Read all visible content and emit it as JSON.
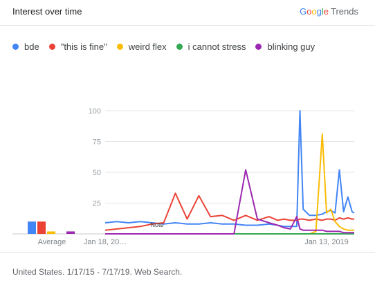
{
  "header": {
    "title": "Interest over time"
  },
  "brand": {
    "google": "Google",
    "trends": "Trends",
    "colors": [
      "#4285F4",
      "#EA4335",
      "#FBBC05",
      "#4285F4",
      "#34A853",
      "#EA4335"
    ]
  },
  "footer": {
    "text": "United States. 1/17/15 - 7/17/19. Web Search."
  },
  "chart_data": {
    "type": "line",
    "ylim": [
      0,
      100
    ],
    "y_ticks": [
      "100",
      "75",
      "50",
      "25"
    ],
    "x_ticks": [
      "Jan 18, 20…",
      "Jan 13, 2019"
    ],
    "note_label": "Note",
    "average_label": "Average",
    "grid": true,
    "legend_placement": "top",
    "x": [
      "2015-01-18",
      "2015-04-05",
      "2015-06-21",
      "2015-09-06",
      "2015-11-22",
      "2016-02-07",
      "2016-04-24",
      "2016-07-10",
      "2016-09-25",
      "2016-12-11",
      "2017-02-26",
      "2017-05-14",
      "2017-07-30",
      "2017-10-15",
      "2017-12-31",
      "2018-02-25",
      "2018-04-08",
      "2018-05-20",
      "2018-07-01",
      "2018-07-22",
      "2018-08-12",
      "2018-09-23",
      "2018-11-04",
      "2018-12-16",
      "2019-01-13",
      "2019-02-10",
      "2019-03-10",
      "2019-04-07",
      "2019-05-05",
      "2019-06-02",
      "2019-06-30",
      "2019-07-14"
    ],
    "series": [
      {
        "name": "bde",
        "color": "#4285F4",
        "average": 10,
        "values": [
          9,
          10,
          9,
          10,
          9,
          8,
          9,
          8,
          8,
          9,
          8,
          8,
          7,
          7,
          8,
          7,
          6,
          6,
          6,
          100,
          20,
          15,
          15,
          16,
          18,
          19,
          17,
          52,
          18,
          30,
          18,
          17
        ]
      },
      {
        "name": "\"this is fine\"",
        "color": "#EA4335",
        "average": 10,
        "values": [
          3,
          4,
          5,
          6,
          8,
          9,
          33,
          12,
          31,
          14,
          15,
          11,
          15,
          11,
          14,
          11,
          12,
          11,
          11,
          12,
          12,
          11,
          12,
          11,
          12,
          12,
          11,
          13,
          12,
          13,
          12,
          12
        ]
      },
      {
        "name": "weird flex",
        "color": "#FBBC05",
        "average": 2,
        "values": [
          0,
          0,
          0,
          0,
          0,
          0,
          0,
          0,
          0,
          0,
          0,
          0,
          0,
          0,
          0,
          0,
          0,
          0,
          0,
          0,
          0,
          0,
          2,
          81,
          17,
          20,
          10,
          6,
          4,
          3,
          3,
          3
        ]
      },
      {
        "name": "i cannot stress",
        "color": "#34A853",
        "average": 0,
        "values": [
          0,
          0,
          0,
          0,
          0,
          0,
          0,
          0,
          0,
          0,
          0,
          0,
          0,
          0,
          0,
          0,
          0,
          0,
          0,
          0,
          0,
          0,
          0,
          0,
          0,
          0,
          0,
          0,
          0,
          0,
          0,
          0
        ]
      },
      {
        "name": "blinking guy",
        "color": "#9C27B0",
        "average": 2,
        "values": [
          0,
          0,
          0,
          0,
          0,
          0,
          0,
          0,
          0,
          0,
          0,
          0,
          52,
          12,
          9,
          7,
          5,
          4,
          14,
          4,
          3,
          3,
          3,
          3,
          2,
          2,
          2,
          2,
          1,
          1,
          1,
          1
        ]
      }
    ]
  }
}
